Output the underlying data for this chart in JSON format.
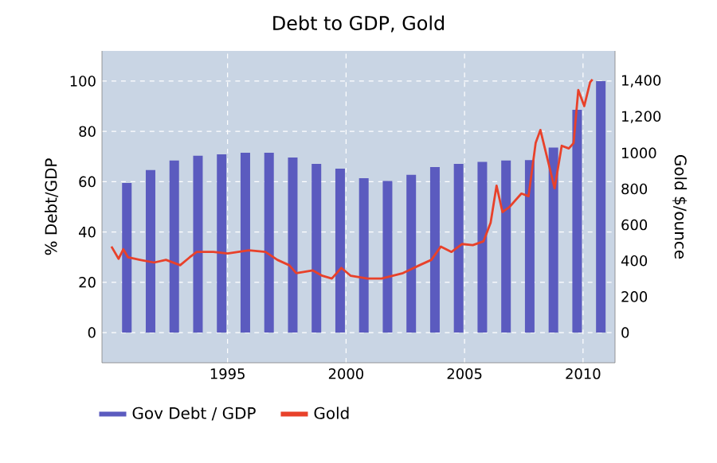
{
  "chart_data": {
    "type": "bar",
    "title": "Debt to GDP, Gold",
    "ylabel": "% Debt/GDP",
    "y2label": "Gold $/ounce",
    "x": [
      1990.75,
      1991.75,
      1992.75,
      1993.75,
      1994.75,
      1995.75,
      1996.75,
      1997.75,
      1998.75,
      1999.75,
      2000.75,
      2001.75,
      2002.75,
      2003.75,
      2004.75,
      2005.75,
      2006.75,
      2007.75,
      2008.75,
      2009.75,
      2010.75
    ],
    "series": [
      {
        "name": "Gov Debt / GDP",
        "color": "#5b5bbf",
        "values": [
          59.5,
          64.6,
          68.4,
          70.3,
          70.9,
          71.5,
          71.5,
          69.6,
          67.1,
          65.2,
          61.4,
          60.3,
          62.7,
          65.8,
          67.1,
          67.9,
          68.4,
          68.6,
          73.6,
          88.6,
          100
        ]
      },
      {
        "name": "Gold",
        "type": "line",
        "axis": "y2",
        "color": "#e8412a",
        "x": [
          1990.1,
          1990.4,
          1990.6,
          1990.8,
          1991.3,
          1991.9,
          1992.4,
          1993.0,
          1993.4,
          1993.7,
          1994.4,
          1995.0,
          1995.9,
          1996.6,
          1997.1,
          1997.6,
          1997.9,
          1998.6,
          1999.0,
          1999.4,
          1999.8,
          2000.2,
          2000.9,
          2001.5,
          2002.4,
          2003.1,
          2003.6,
          2004.0,
          2004.45,
          2004.9,
          2005.35,
          2005.8,
          2006.1,
          2006.35,
          2006.6,
          2006.9,
          2007.4,
          2007.7,
          2008.0,
          2008.2,
          2008.5,
          2008.8,
          2009.1,
          2009.4,
          2009.6,
          2009.8,
          2010.05,
          2010.3,
          2010.4
        ],
        "values": [
          479,
          411,
          464,
          419,
          405,
          390,
          405,
          375,
          419,
          449,
          449,
          440,
          458,
          449,
          405,
          375,
          331,
          346,
          316,
          301,
          360,
          316,
          301,
          301,
          331,
          375,
          405,
          479,
          449,
          493,
          487,
          508,
          611,
          818,
          671,
          700,
          774,
          759,
          1055,
          1128,
          966,
          803,
          1040,
          1025,
          1055,
          1350,
          1261,
          1394,
          1409
        ]
      }
    ],
    "xlim": [
      1989.7,
      2011.35
    ],
    "xticks": [
      1995,
      2000,
      2005,
      2010
    ],
    "ylim": [
      -12,
      112
    ],
    "yticks": [
      0,
      20,
      40,
      60,
      80,
      100
    ],
    "y2lim": [
      -168,
      1568
    ],
    "y2ticks": [
      0,
      200,
      400,
      600,
      800,
      1000,
      {
        "value": 1200,
        "label": "1,200"
      },
      {
        "value": 1400,
        "label": "1,400"
      }
    ],
    "grid": true,
    "legend": "bottom",
    "marker": "none",
    "line_style": "solid"
  }
}
